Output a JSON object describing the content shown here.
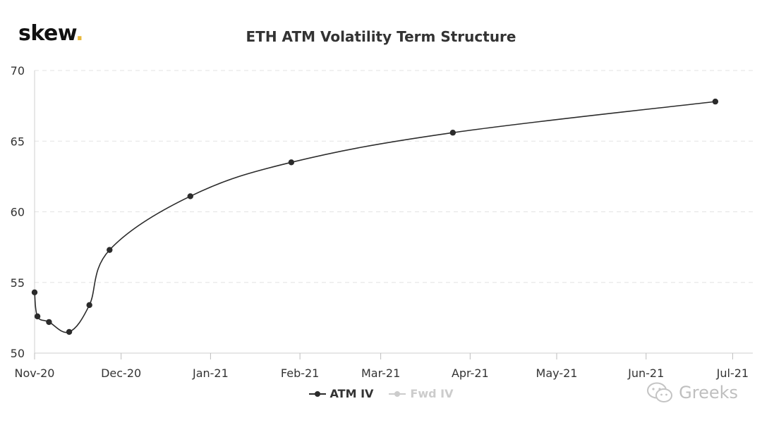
{
  "logo": {
    "text": "skew",
    "dot": ".",
    "dot_color": "#e8b83c"
  },
  "chart_data": {
    "type": "line",
    "title": "ETH ATM Volatility Term Structure",
    "xlabel": "",
    "ylabel": "",
    "ylim": [
      50,
      70
    ],
    "yticks": [
      50,
      55,
      60,
      65,
      70
    ],
    "xlim": [
      "2020-11-01",
      "2021-07-08"
    ],
    "xticks": [
      {
        "date": "2020-11-01",
        "label": "Nov-20"
      },
      {
        "date": "2020-12-01",
        "label": "Dec-20"
      },
      {
        "date": "2021-01-01",
        "label": "Jan-21"
      },
      {
        "date": "2021-02-01",
        "label": "Feb-21"
      },
      {
        "date": "2021-03-01",
        "label": "Mar-21"
      },
      {
        "date": "2021-04-01",
        "label": "Apr-21"
      },
      {
        "date": "2021-05-01",
        "label": "May-21"
      },
      {
        "date": "2021-06-01",
        "label": "Jun-21"
      },
      {
        "date": "2021-07-01",
        "label": "Jul-21"
      }
    ],
    "grid": {
      "horizontal": true,
      "vertical": false
    },
    "series": [
      {
        "name": "ATM IV",
        "color": "#2b2b2b",
        "visible": true,
        "points": [
          {
            "x": "2020-11-01",
            "y": 54.3
          },
          {
            "x": "2020-11-02",
            "y": 52.6
          },
          {
            "x": "2020-11-06",
            "y": 52.2
          },
          {
            "x": "2020-11-13",
            "y": 51.5
          },
          {
            "x": "2020-11-20",
            "y": 53.4
          },
          {
            "x": "2020-11-27",
            "y": 57.3
          },
          {
            "x": "2020-12-25",
            "y": 61.1
          },
          {
            "x": "2021-01-29",
            "y": 63.5
          },
          {
            "x": "2021-03-26",
            "y": 65.6
          },
          {
            "x": "2021-06-25",
            "y": 67.8
          }
        ]
      },
      {
        "name": "Fwd IV",
        "color": "#cccccc",
        "visible": false,
        "points": []
      }
    ]
  },
  "watermark": {
    "text": "Greeks",
    "icon": "wechat-icon"
  }
}
